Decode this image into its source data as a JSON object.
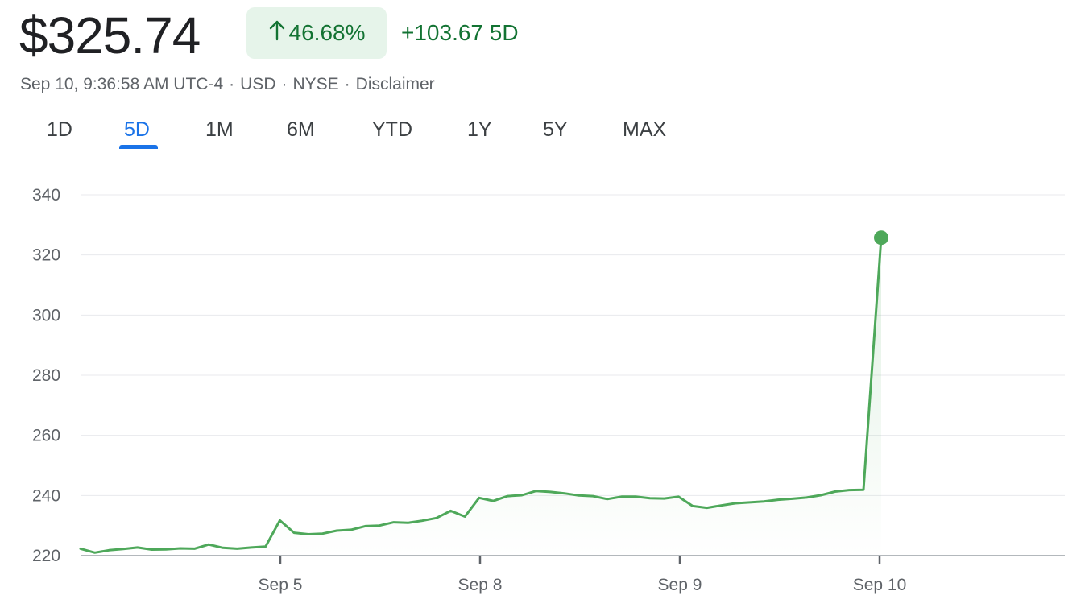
{
  "header": {
    "price": "$325.74",
    "pct_change": "46.68%",
    "abs_change": "+103.67 5D",
    "meta_time": "Sep 10, 9:36:58 AM UTC-4",
    "meta_currency": "USD",
    "meta_exchange": "NYSE",
    "meta_disclaimer": "Disclaimer"
  },
  "tabs": [
    {
      "label": "1D"
    },
    {
      "label": "5D",
      "active": true
    },
    {
      "label": "1M"
    },
    {
      "label": "6M"
    },
    {
      "label": "YTD"
    },
    {
      "label": "1Y"
    },
    {
      "label": "5Y"
    },
    {
      "label": "MAX"
    }
  ],
  "colors": {
    "line": "#4ea85a",
    "positive_text": "#137333",
    "positive_bg": "#e6f4ea",
    "active_tab": "#1a73e8"
  },
  "icons": {
    "change_arrow": "arrow-up-icon"
  },
  "chart_data": {
    "type": "line",
    "grid": true,
    "ylim": [
      220,
      340
    ],
    "yticks": [
      220,
      240,
      260,
      280,
      300,
      320,
      340
    ],
    "xticks": [
      "Sep 5",
      "Sep 8",
      "Sep 9",
      "Sep 10"
    ],
    "series": [
      {
        "values": [
          222.3,
          221.0,
          221.8,
          222.2,
          222.7,
          222.0,
          222.1,
          222.4,
          222.3,
          223.7,
          222.6,
          222.3,
          222.7,
          223.0,
          231.7,
          227.6,
          227.1,
          227.3,
          228.3,
          228.6,
          229.8,
          230.0,
          231.1,
          230.9,
          231.6,
          232.5,
          234.9,
          233.0,
          239.2,
          238.2,
          239.8,
          240.1,
          241.5,
          241.2,
          240.7,
          240.0,
          239.8,
          238.8,
          239.6,
          239.6,
          239.1,
          239.0,
          239.6,
          236.5,
          235.9,
          236.7,
          237.4,
          237.7,
          238.0,
          238.6,
          238.9,
          239.3,
          240.1,
          241.3,
          241.8,
          241.9,
          325.74
        ]
      }
    ]
  }
}
